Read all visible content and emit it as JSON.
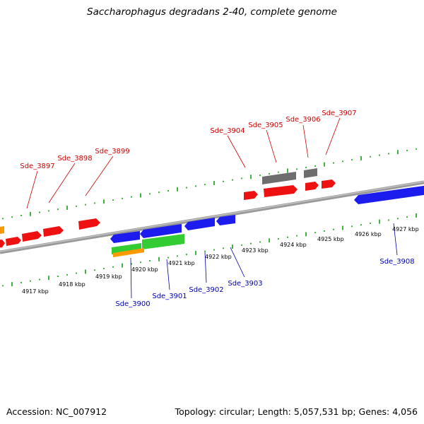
{
  "title": "Saccharophagus degradans 2-40, complete genome",
  "footer": {
    "accession": "Accession: NC_007912",
    "topology": "Topology: circular; Length: 5,057,531 bp; Genes: 4,056"
  },
  "colors": {
    "forward_gene": "#ee1111",
    "reverse_gene": "#1c1cee",
    "gray_gene": "#6e6e6e",
    "green_gene": "#33cc33",
    "orange_gene": "#ff9900",
    "tick": "#009900",
    "label_red": "#cc0000",
    "label_blue": "#0000aa",
    "backbone": "#8a8a8a"
  },
  "scale_labels": [
    "4917 kbp",
    "4918 kbp",
    "4919 kbp",
    "4920 kbp",
    "4921 kbp",
    "4922 kbp",
    "4923 kbp",
    "4924 kbp",
    "4925 kbp",
    "4926 kbp",
    "4927 kbp"
  ],
  "top_labels": [
    "Sde_3897",
    "Sde_3898",
    "Sde_3899",
    "Sde_3904",
    "Sde_3905",
    "Sde_3906",
    "Sde_3907"
  ],
  "bottom_labels": [
    "Sde_3900",
    "Sde_3901",
    "Sde_3902",
    "Sde_3903",
    "Sde_3908"
  ]
}
